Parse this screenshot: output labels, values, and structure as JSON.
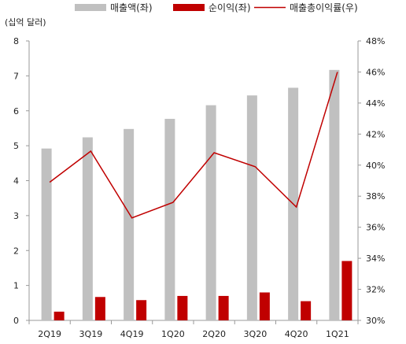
{
  "chart_data": {
    "type": "bar",
    "unit_label": "(십억 달러)",
    "categories": [
      "2Q19",
      "3Q19",
      "4Q19",
      "1Q20",
      "2Q20",
      "3Q20",
      "4Q20",
      "1Q21"
    ],
    "series": [
      {
        "name": "매출액(좌)",
        "type": "bar",
        "axis": "left",
        "color": "#c0c0c0",
        "values": [
          4.92,
          5.24,
          5.48,
          5.77,
          6.16,
          6.44,
          6.66,
          7.17
        ]
      },
      {
        "name": "순이익(좌)",
        "type": "bar",
        "axis": "left",
        "color": "#c00000",
        "values": [
          0.25,
          0.67,
          0.58,
          0.7,
          0.7,
          0.8,
          0.55,
          1.7
        ]
      },
      {
        "name": "매출총이익률(우)",
        "type": "line",
        "axis": "right",
        "color": "#c00000",
        "values": [
          38.9,
          40.9,
          36.6,
          37.6,
          40.8,
          39.9,
          37.3,
          46.0
        ]
      }
    ],
    "left_axis": {
      "min": 0,
      "max": 8,
      "ticks": [
        0,
        1,
        2,
        3,
        4,
        5,
        6,
        7,
        8
      ]
    },
    "right_axis": {
      "min": 30,
      "max": 48,
      "ticks": [
        "30%",
        "32%",
        "34%",
        "36%",
        "38%",
        "40%",
        "42%",
        "44%",
        "46%",
        "48%"
      ]
    },
    "legend_position": "top",
    "grid": false
  }
}
